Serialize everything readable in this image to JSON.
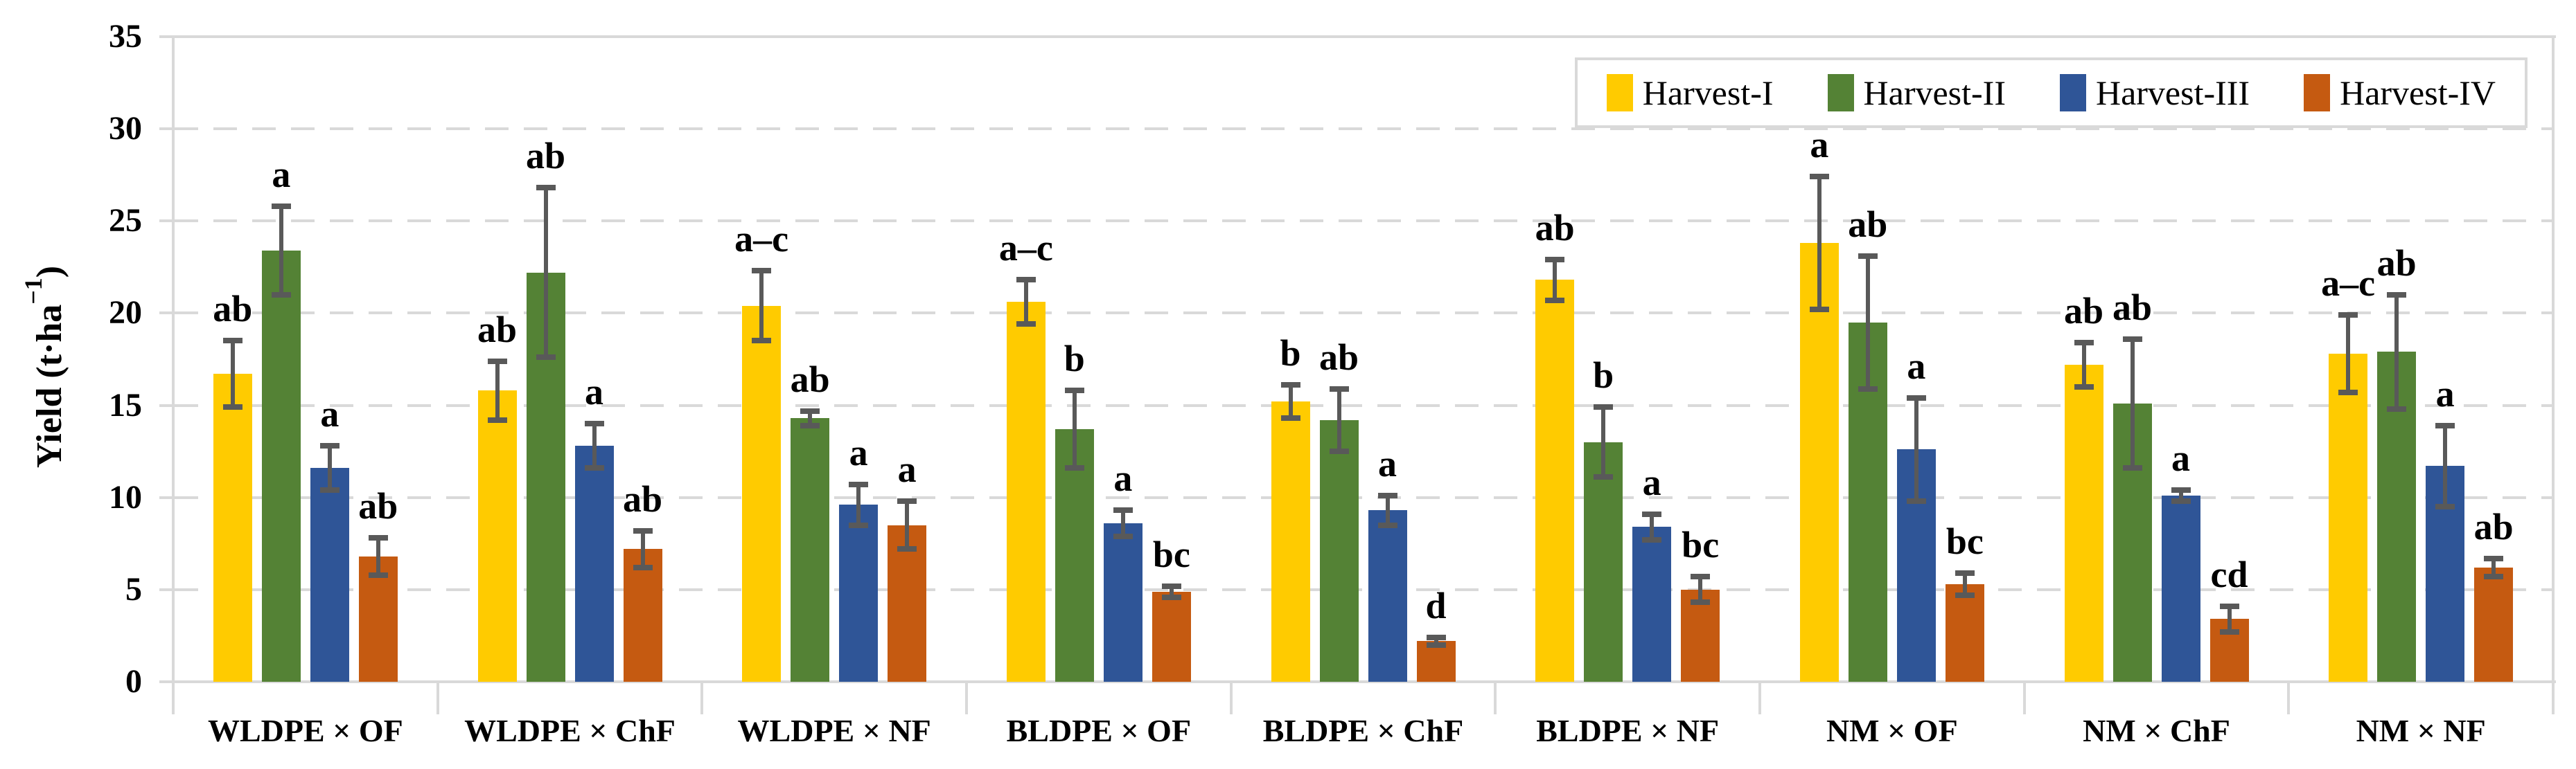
{
  "chart_data": {
    "type": "bar",
    "title": "",
    "ylabel": "Yield (t·ha−1)",
    "ylabel_parts": {
      "prefix": "Yield (t·ha",
      "sup": "−1",
      "suffix": ")"
    },
    "ylim": [
      0,
      35
    ],
    "yticks": [
      "0",
      "5",
      "10",
      "15",
      "20",
      "25",
      "30",
      "35"
    ],
    "grid": "horizontal dashed every 5, solid light-gray plot frame",
    "legend_position": "top-right inside plot",
    "colors": {
      "grid": "#D9D9D9",
      "frame": "#D9D9D9",
      "error_bar": "#595959",
      "text": "#000000",
      "background": "#FFFFFF"
    },
    "categories": [
      "WLDPE × OF",
      "WLDPE × ChF",
      "WLDPE × NF",
      "BLDPE × OF",
      "BLDPE × ChF",
      "BLDPE × NF",
      "NM × OF",
      "NM × ChF",
      "NM × NF"
    ],
    "series": [
      {
        "name": "Harvest-I",
        "color": "#FFCB00",
        "values": [
          16.7,
          15.8,
          20.4,
          20.6,
          15.2,
          21.8,
          23.8,
          17.2,
          17.8
        ],
        "errors": [
          1.8,
          1.6,
          1.9,
          1.2,
          0.9,
          1.1,
          3.6,
          1.2,
          2.1
        ],
        "letters": [
          "ab",
          "ab",
          "a–c",
          "a–c",
          "b",
          "ab",
          "a",
          "ab",
          "a–c"
        ]
      },
      {
        "name": "Harvest-II",
        "color": "#548235",
        "values": [
          23.4,
          22.2,
          14.3,
          13.7,
          14.2,
          13.0,
          19.5,
          15.1,
          17.9
        ],
        "errors": [
          2.4,
          4.6,
          0.4,
          2.1,
          1.7,
          1.9,
          3.6,
          3.5,
          3.1
        ],
        "letters": [
          "a",
          "ab",
          "ab",
          "b",
          "ab",
          "b",
          "ab",
          "ab",
          "ab"
        ]
      },
      {
        "name": "Harvest-III",
        "color": "#2F5597",
        "values": [
          11.6,
          12.8,
          9.6,
          8.6,
          9.3,
          8.4,
          12.6,
          10.1,
          11.7
        ],
        "errors": [
          1.2,
          1.2,
          1.1,
          0.7,
          0.8,
          0.7,
          2.8,
          0.3,
          2.2
        ],
        "letters": [
          "a",
          "a",
          "a",
          "a",
          "a",
          "a",
          "a",
          "a",
          "a"
        ]
      },
      {
        "name": "Harvest-IV",
        "color": "#C55A11",
        "values": [
          6.8,
          7.2,
          8.5,
          4.9,
          2.2,
          5.0,
          5.3,
          3.4,
          6.2
        ],
        "errors": [
          1.0,
          1.0,
          1.3,
          0.3,
          0.2,
          0.7,
          0.6,
          0.7,
          0.5
        ],
        "letters": [
          "ab",
          "ab",
          "a",
          "bc",
          "d",
          "bc",
          "bc",
          "cd",
          "ab"
        ]
      }
    ]
  }
}
